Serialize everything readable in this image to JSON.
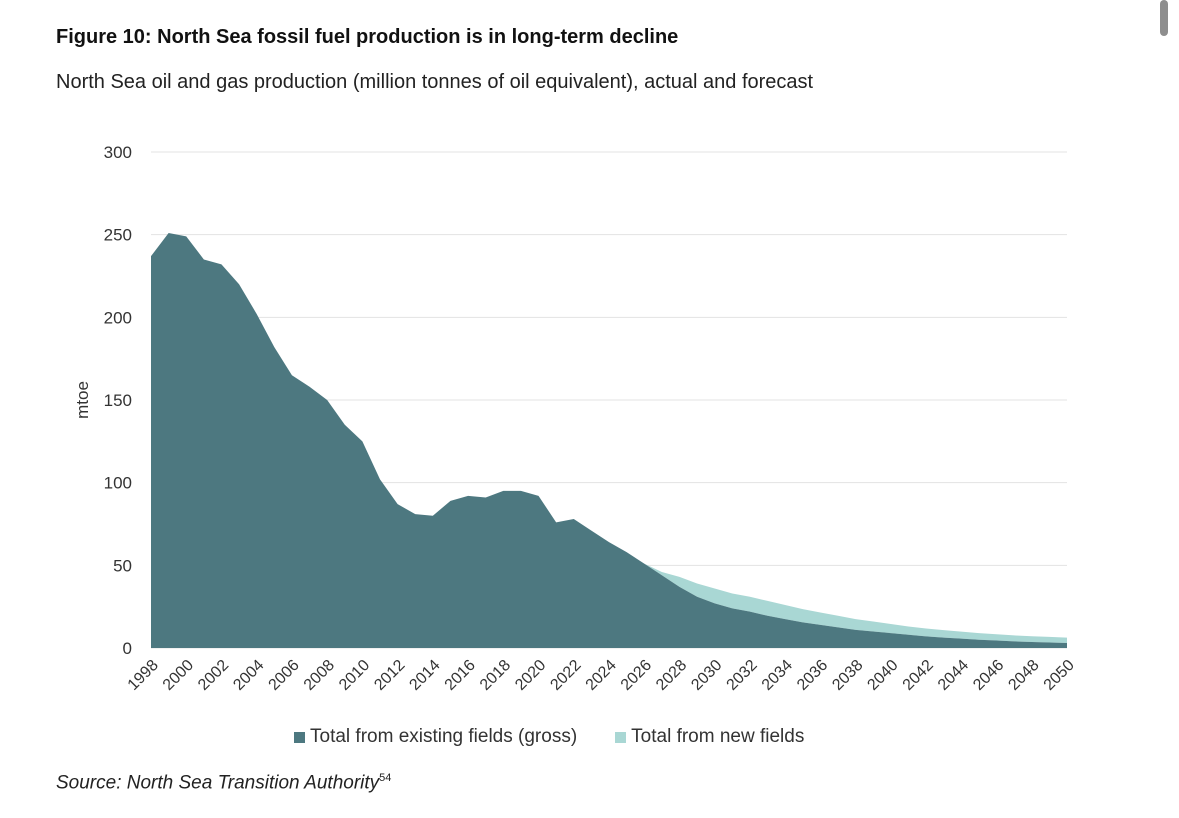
{
  "title": "Figure 10: North Sea fossil fuel production is in long-term decline",
  "subtitle": "North Sea oil and gas production (million tonnes of oil equivalent), actual and forecast",
  "source_text": "Source: North Sea Transition Authority",
  "source_ref": "54",
  "chart_data": {
    "type": "area",
    "stacked": true,
    "ylabel": "mtoe",
    "xlabel": "",
    "ylim": [
      0,
      300
    ],
    "yticks": [
      0,
      50,
      100,
      150,
      200,
      250,
      300
    ],
    "grid": true,
    "legend_position": "bottom",
    "x": [
      1998,
      1999,
      2000,
      2001,
      2002,
      2003,
      2004,
      2005,
      2006,
      2007,
      2008,
      2009,
      2010,
      2011,
      2012,
      2013,
      2014,
      2015,
      2016,
      2017,
      2018,
      2019,
      2020,
      2021,
      2022,
      2023,
      2024,
      2025,
      2026,
      2027,
      2028,
      2029,
      2030,
      2031,
      2032,
      2033,
      2034,
      2035,
      2036,
      2037,
      2038,
      2039,
      2040,
      2041,
      2042,
      2043,
      2044,
      2045,
      2046,
      2047,
      2048,
      2049,
      2050
    ],
    "xtick_labels": [
      "1998",
      "2000",
      "2002",
      "2004",
      "2006",
      "2008",
      "2010",
      "2012",
      "2014",
      "2016",
      "2018",
      "2020",
      "2022",
      "2024",
      "2026",
      "2028",
      "2030",
      "2032",
      "2034",
      "2036",
      "2038",
      "2040",
      "2042",
      "2044",
      "2046",
      "2048",
      "2050"
    ],
    "series": [
      {
        "name": "Total from existing fields (gross)",
        "color": "#4d7880",
        "values": [
          237,
          251,
          249,
          235,
          232,
          220,
          202,
          182,
          165,
          158,
          150,
          135,
          125,
          102,
          87,
          81,
          80,
          89,
          92,
          91,
          95,
          95,
          92,
          76,
          78,
          71,
          64,
          58,
          51,
          44,
          37,
          31,
          27,
          24,
          22,
          19.5,
          17.5,
          15.5,
          14,
          12.5,
          11,
          10,
          9,
          8,
          7,
          6.3,
          5.7,
          5,
          4.5,
          4,
          3.6,
          3.3,
          3
        ]
      },
      {
        "name": "Total from new fields",
        "color": "#a9d7d4",
        "values": [
          0,
          0,
          0,
          0,
          0,
          0,
          0,
          0,
          0,
          0,
          0,
          0,
          0,
          0,
          0,
          0,
          0,
          0,
          0,
          0,
          0,
          0,
          0,
          0,
          0,
          0,
          0,
          0,
          0,
          2,
          6,
          8,
          9,
          9,
          9,
          9,
          8.5,
          8,
          7.5,
          7,
          6.5,
          6,
          5.5,
          5,
          4.8,
          4.5,
          4.2,
          4,
          3.8,
          3.6,
          3.5,
          3.4,
          3.3
        ]
      }
    ]
  }
}
